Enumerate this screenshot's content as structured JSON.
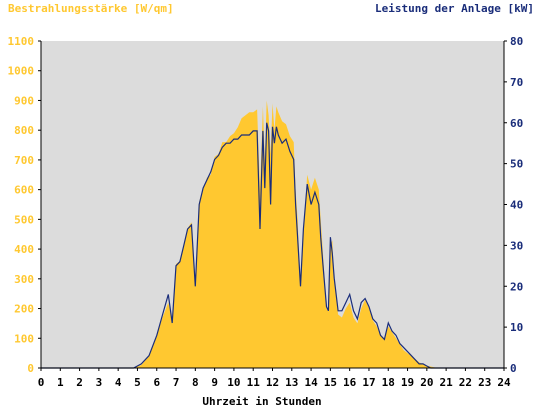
{
  "colors": {
    "plot_background": "#dcdcdc",
    "irradiance": "#ffc830",
    "power": "#1a2d7a",
    "left_axis_text": "#ffc830",
    "right_axis_text": "#1a2d7a",
    "x_axis_text": "#000000"
  },
  "chart_data": {
    "type": "area",
    "ylabel_left": "Bestrahlungsstärke [W/qm]",
    "ylabel_right": "Leistung der Anlage [kW]",
    "xlabel": "Uhrzeit in Stunden",
    "xlim": [
      0,
      24
    ],
    "ylim_left": [
      0,
      1100
    ],
    "ylim_right": [
      0,
      80
    ],
    "x_ticks": [
      "0",
      "1",
      "2",
      "3",
      "4",
      "5",
      "6",
      "7",
      "8",
      "9",
      "10",
      "11",
      "12",
      "13",
      "14",
      "15",
      "16",
      "17",
      "18",
      "19",
      "20",
      "21",
      "22",
      "23",
      "24"
    ],
    "y_left_ticks": [
      "0",
      "100",
      "200",
      "300",
      "400",
      "500",
      "600",
      "700",
      "800",
      "900",
      "1000",
      "1100"
    ],
    "y_right_ticks": [
      "0",
      "10",
      "20",
      "30",
      "40",
      "50",
      "60",
      "70",
      "80"
    ],
    "grid": false,
    "series": [
      {
        "name": "Bestrahlungsstärke [W/qm]",
        "axis": "left",
        "style": "area",
        "x": [
          0,
          4.8,
          5.2,
          5.6,
          6.0,
          6.3,
          6.6,
          6.8,
          7.0,
          7.2,
          7.4,
          7.6,
          7.8,
          8.0,
          8.2,
          8.4,
          8.6,
          8.8,
          9.0,
          9.2,
          9.4,
          9.6,
          9.8,
          10.0,
          10.2,
          10.4,
          10.6,
          10.8,
          11.0,
          11.2,
          11.35,
          11.5,
          11.6,
          11.7,
          11.8,
          11.9,
          12.0,
          12.1,
          12.2,
          12.3,
          12.5,
          12.7,
          12.9,
          13.1,
          13.2,
          13.3,
          13.45,
          13.6,
          13.8,
          14.0,
          14.2,
          14.4,
          14.5,
          14.6,
          14.8,
          14.9,
          15.0,
          15.1,
          15.2,
          15.4,
          15.6,
          15.8,
          16.0,
          16.2,
          16.4,
          16.6,
          16.8,
          17.0,
          17.2,
          17.4,
          17.6,
          17.8,
          18.0,
          18.2,
          18.4,
          18.6,
          18.8,
          19.0,
          19.2,
          19.4,
          19.6,
          19.8,
          20.0,
          20.2,
          20.4,
          20.6,
          21.0,
          24.0
        ],
        "values": [
          0,
          0,
          10,
          40,
          110,
          170,
          220,
          160,
          350,
          360,
          410,
          470,
          490,
          280,
          560,
          600,
          640,
          650,
          710,
          720,
          760,
          760,
          780,
          790,
          810,
          840,
          850,
          860,
          860,
          870,
          600,
          880,
          700,
          900,
          850,
          720,
          890,
          800,
          880,
          860,
          830,
          820,
          780,
          760,
          600,
          500,
          280,
          460,
          650,
          600,
          640,
          600,
          500,
          400,
          200,
          190,
          410,
          430,
          300,
          180,
          170,
          200,
          220,
          170,
          150,
          200,
          230,
          200,
          160,
          140,
          110,
          100,
          140,
          120,
          100,
          80,
          60,
          50,
          40,
          30,
          20,
          12,
          8,
          5,
          2,
          0,
          0,
          0
        ]
      },
      {
        "name": "Leistung der Anlage [kW]",
        "axis": "right",
        "style": "line",
        "x": [
          0,
          4.8,
          5.2,
          5.6,
          6.0,
          6.3,
          6.6,
          6.8,
          7.0,
          7.2,
          7.4,
          7.6,
          7.8,
          8.0,
          8.2,
          8.4,
          8.6,
          8.8,
          9.0,
          9.2,
          9.4,
          9.6,
          9.8,
          10.0,
          10.2,
          10.4,
          10.6,
          10.8,
          11.0,
          11.2,
          11.35,
          11.5,
          11.6,
          11.7,
          11.8,
          11.9,
          12.0,
          12.1,
          12.2,
          12.3,
          12.5,
          12.7,
          12.9,
          13.1,
          13.2,
          13.3,
          13.45,
          13.6,
          13.8,
          14.0,
          14.2,
          14.4,
          14.5,
          14.6,
          14.8,
          14.9,
          15.0,
          15.1,
          15.2,
          15.4,
          15.6,
          15.8,
          16.0,
          16.2,
          16.4,
          16.6,
          16.8,
          17.0,
          17.2,
          17.4,
          17.6,
          17.8,
          18.0,
          18.2,
          18.4,
          18.6,
          18.8,
          19.0,
          19.2,
          19.4,
          19.6,
          19.8,
          20.0,
          20.2,
          20.4,
          20.6,
          21.0,
          24.0
        ],
        "values": [
          0,
          0,
          1,
          3,
          8,
          13,
          18,
          11,
          25,
          26,
          30,
          34,
          35,
          20,
          40,
          44,
          46,
          48,
          51,
          52,
          54,
          55,
          55,
          56,
          56,
          57,
          57,
          57,
          58,
          58,
          34,
          58,
          44,
          60,
          58,
          40,
          59,
          55,
          59,
          57,
          55,
          56,
          53,
          51,
          40,
          32,
          20,
          34,
          45,
          40,
          43,
          40,
          32,
          26,
          15,
          14,
          32,
          28,
          22,
          14,
          14,
          16,
          18,
          14,
          12,
          16,
          17,
          15,
          12,
          11,
          8,
          7,
          11,
          9,
          8,
          6,
          5,
          4,
          3,
          2,
          1,
          1,
          0.5,
          0,
          0,
          0,
          0,
          0
        ]
      }
    ]
  }
}
